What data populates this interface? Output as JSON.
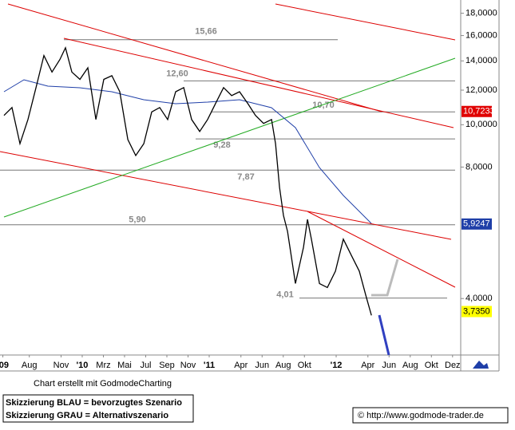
{
  "chart_data": {
    "type": "line",
    "log_y": true,
    "xlim": [
      5.23,
      48.77
    ],
    "ylim": [
      2.97,
      19.3
    ],
    "xticks": [
      {
        "value": 5.5,
        "label": "'09"
      },
      {
        "value": 8,
        "label": "Aug"
      },
      {
        "value": 11,
        "label": "Nov"
      },
      {
        "value": 13,
        "label": "'10"
      },
      {
        "value": 15,
        "label": "Mrz"
      },
      {
        "value": 17,
        "label": "Mai"
      },
      {
        "value": 19,
        "label": "Jul"
      },
      {
        "value": 21,
        "label": "Sep"
      },
      {
        "value": 23,
        "label": "Nov"
      },
      {
        "value": 25,
        "label": "'11"
      },
      {
        "value": 28,
        "label": "Apr"
      },
      {
        "value": 30,
        "label": "Jun"
      },
      {
        "value": 32,
        "label": "Aug"
      },
      {
        "value": 34,
        "label": "Okt"
      },
      {
        "value": 37,
        "label": "'12"
      },
      {
        "value": 40,
        "label": "Apr"
      },
      {
        "value": 42,
        "label": "Jun"
      },
      {
        "value": 44,
        "label": "Aug"
      },
      {
        "value": 46,
        "label": "Okt"
      },
      {
        "value": 48,
        "label": "Dez"
      }
    ],
    "yticks": [
      {
        "value": 18,
        "label": "18,0000"
      },
      {
        "value": 16,
        "label": "16,0000"
      },
      {
        "value": 14,
        "label": "14,0000"
      },
      {
        "value": 12,
        "label": "12,0000"
      },
      {
        "value": 10,
        "label": "10,0000"
      },
      {
        "value": 8,
        "label": "8,0000"
      },
      {
        "value": 4,
        "label": "4,0000"
      }
    ],
    "series": [
      {
        "color": "#000000",
        "x": [
          5.61,
          6.36,
          7.12,
          7.87,
          8.63,
          9.38,
          10.14,
          10.89,
          11.42,
          12.02,
          12.78,
          13.53,
          14.29,
          15.04,
          15.8,
          16.55,
          17.31,
          18.06,
          18.82,
          19.57,
          20.32,
          21.08,
          21.83,
          22.59,
          23.34,
          24.1,
          24.85,
          25.61,
          26.36,
          27.12,
          27.87,
          28.63,
          29.38,
          30.14,
          30.89,
          31.27,
          31.65,
          32.02,
          32.4,
          33.15,
          33.91,
          34.29,
          34.66,
          35.42,
          36.17,
          36.93,
          37.68,
          38.44,
          39.19,
          39.8,
          40.33
        ],
        "values": [
          10.5,
          10.95,
          9.05,
          10.28,
          12.16,
          14.4,
          13.2,
          14.1,
          15.0,
          13.2,
          12.7,
          13.5,
          10.28,
          12.7,
          12.95,
          11.9,
          9.25,
          8.5,
          9.05,
          10.7,
          10.95,
          10.28,
          11.9,
          12.16,
          10.28,
          9.65,
          10.28,
          11.2,
          12.16,
          11.66,
          11.9,
          11.2,
          10.5,
          10.07,
          10.28,
          9.05,
          7.19,
          6.2,
          5.7,
          4.33,
          5.24,
          6.07,
          5.47,
          4.33,
          4.24,
          4.62,
          5.47,
          5.02,
          4.62,
          4.07,
          3.66
        ]
      }
    ],
    "levels": [
      {
        "value": 15.66,
        "label": "15,66"
      },
      {
        "value": 12.6,
        "label": "12,60"
      },
      {
        "value": 10.7,
        "label": "10,70"
      },
      {
        "value": 9.28,
        "label": "9,28"
      },
      {
        "value": 7.87,
        "label": "7,87"
      },
      {
        "value": 5.9,
        "label": "5,90"
      },
      {
        "value": 4.01,
        "label": "4,01"
      }
    ],
    "price_markers": [
      {
        "value": 10.7233,
        "label": "10,7233",
        "color": "#e00000",
        "text_color": "#ffffff"
      },
      {
        "value": 5.9247,
        "label": "5,9247",
        "color": "#1f3fa8",
        "text_color": "#ffffff"
      },
      {
        "value": 3.735,
        "label": "3,7350",
        "color": "#ffff00",
        "text_color": "#000000"
      }
    ],
    "credit": "Chart erstellt mit GodmodeCharting",
    "notes": [
      "Skizzierung BLAU = bevorzugtes Szenario",
      "Skizzierung GRAU = Alternativszenario"
    ],
    "source": "© http://www.godmode-trader.de"
  }
}
